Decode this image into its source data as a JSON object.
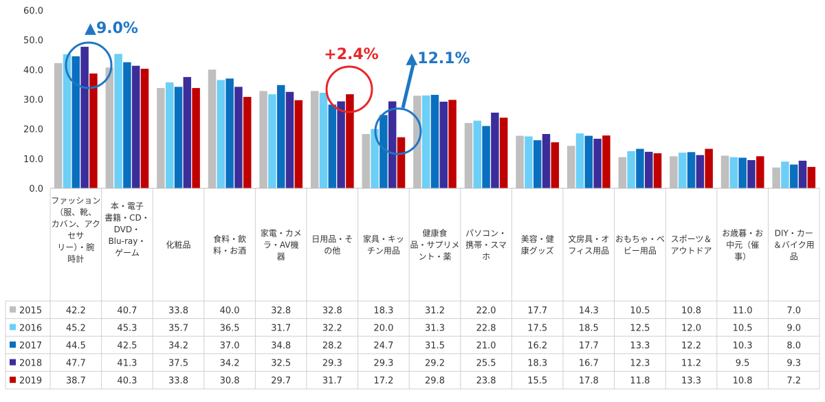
{
  "chart_data": {
    "type": "bar",
    "ylim": [
      0,
      60
    ],
    "yticks": [
      "60.0",
      "50.0",
      "40.0",
      "30.0",
      "20.0",
      "10.0",
      "0.0"
    ],
    "grid": false,
    "legend": "table-left",
    "categories": [
      [
        "ファッション",
        "（服、靴、",
        "カバン、アク",
        "セサ",
        "リー）・腕",
        "時計"
      ],
      [
        "本・電子",
        "書籍・CD・",
        "DVD・",
        "Blu-ray・",
        "ゲーム"
      ],
      [
        "化粧品"
      ],
      [
        "食料・飲",
        "料・お酒"
      ],
      [
        "家電・カメ",
        "ラ・AV機",
        "器"
      ],
      [
        "日用品・そ",
        "の他"
      ],
      [
        "家具・キッ",
        "チン用品"
      ],
      [
        "健康食",
        "品・サプリメ",
        "ント・薬"
      ],
      [
        "パソコン・",
        "携帯・スマ",
        "ホ"
      ],
      [
        "美容・健",
        "康グッズ"
      ],
      [
        "文房具・オ",
        "フィス用品"
      ],
      [
        "おもちゃ・ベ",
        "ビー用品"
      ],
      [
        "スポーツ＆",
        "アウトドア"
      ],
      [
        "お歳暮・お",
        "中元（催",
        "事）"
      ],
      [
        "DIY・カー",
        "＆バイク用",
        "品"
      ]
    ],
    "series": [
      {
        "name": "2015",
        "color": "#bfbfbf",
        "values": [
          42.2,
          40.7,
          33.8,
          40.0,
          32.8,
          32.8,
          18.3,
          31.2,
          22.0,
          17.7,
          14.3,
          10.5,
          10.8,
          11.0,
          7.0
        ]
      },
      {
        "name": "2016",
        "color": "#6ccff6",
        "values": [
          45.2,
          45.3,
          35.7,
          36.5,
          31.7,
          32.2,
          20.0,
          31.3,
          22.8,
          17.5,
          18.5,
          12.5,
          12.0,
          10.5,
          9.0
        ]
      },
      {
        "name": "2017",
        "color": "#0b6fbf",
        "values": [
          44.5,
          42.5,
          34.2,
          37.0,
          34.8,
          28.2,
          24.7,
          31.5,
          21.0,
          16.2,
          17.7,
          13.3,
          12.2,
          10.3,
          8.0
        ]
      },
      {
        "name": "2018",
        "color": "#3b2d9a",
        "values": [
          47.7,
          41.3,
          37.5,
          34.2,
          32.5,
          29.3,
          29.3,
          29.2,
          25.5,
          18.3,
          16.7,
          12.3,
          11.2,
          9.5,
          9.3
        ]
      },
      {
        "name": "2019",
        "color": "#c00000",
        "values": [
          38.7,
          40.3,
          33.8,
          30.8,
          29.7,
          31.7,
          17.2,
          29.8,
          23.8,
          15.5,
          17.8,
          11.8,
          13.3,
          10.8,
          7.2
        ]
      }
    ],
    "annotations": [
      {
        "text": "▲9.0%",
        "color": "#1f77c4",
        "category_index": 0
      },
      {
        "text": "+2.4%",
        "color": "#e8262a",
        "category_index": 5
      },
      {
        "text": "▲12.1%",
        "color": "#1f77c4",
        "category_index": 6
      }
    ]
  }
}
